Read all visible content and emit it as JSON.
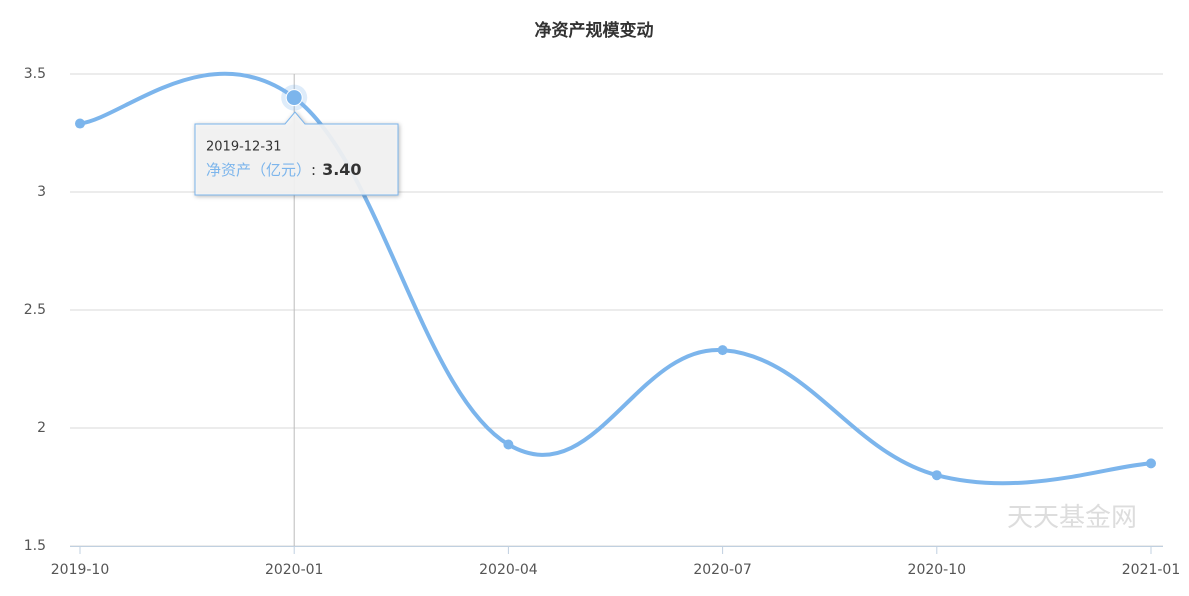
{
  "chart_data": {
    "type": "line",
    "title": "净资产规模变动",
    "categories": [
      "2019-10",
      "2020-01",
      "2020-04",
      "2020-07",
      "2020-10",
      "2021-01"
    ],
    "series": [
      {
        "name": "净资产（亿元）",
        "color": "#7cb5ec",
        "values": [
          3.29,
          3.4,
          1.93,
          2.33,
          1.8,
          1.85
        ]
      }
    ],
    "ylim": [
      1.5,
      3.5
    ],
    "yticks": [
      1.5,
      2,
      2.5,
      3,
      3.5
    ],
    "grid": true,
    "tooltip": {
      "date": "2019-12-31",
      "separator": ":",
      "value": 3.4,
      "value_label": "3.40"
    },
    "watermark": "天天基金网"
  }
}
